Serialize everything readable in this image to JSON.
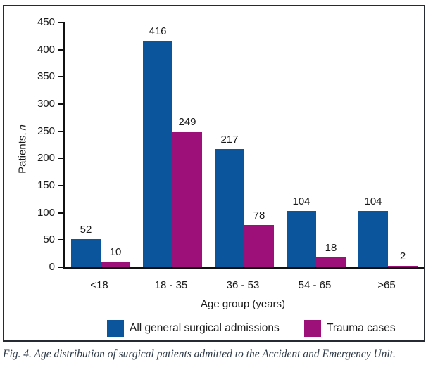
{
  "figure": {
    "caption": "Fig. 4. Age distribution of surgical patients admitted to the Accident and Emergency Unit."
  },
  "chart_data": {
    "type": "bar",
    "title": "",
    "categories": [
      "<18",
      "18 - 35",
      "36 - 53",
      "54 - 65",
      ">65"
    ],
    "series": [
      {
        "name": "All general surgical admissions",
        "color": "#0A559C",
        "values": [
          52,
          416,
          217,
          104,
          104
        ]
      },
      {
        "name": "Trauma cases",
        "color": "#9E1079",
        "values": [
          10,
          249,
          78,
          18,
          2
        ]
      }
    ],
    "value_labels": {
      "all_general_surgical_admissions": [
        "52",
        "416",
        "217",
        "104",
        "104"
      ],
      "trauma_cases": [
        "10",
        "249",
        "78",
        "18",
        "2"
      ]
    },
    "xlabel": "Age group (years)",
    "ylabel": "Patients, n",
    "ylabel_main": "Patients,",
    "ylabel_italic": "n",
    "ylim": [
      0,
      450
    ],
    "yticks": [
      "0",
      "50",
      "100",
      "150",
      "200",
      "250",
      "300",
      "350",
      "400",
      "450"
    ],
    "grid": false,
    "legend_position": "bottom",
    "value_labels_shown": true
  }
}
